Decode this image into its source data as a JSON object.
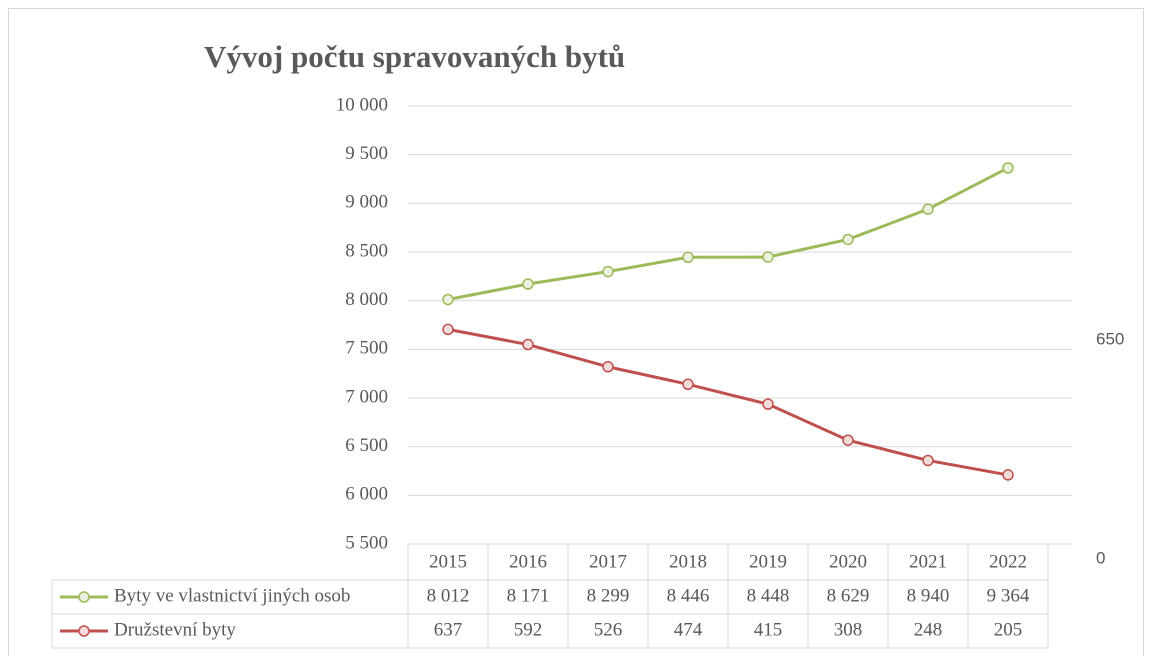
{
  "chart_data": {
    "type": "line",
    "title": "Vývoj počtu spravovaných bytů",
    "categories": [
      "2015",
      "2016",
      "2017",
      "2018",
      "2019",
      "2020",
      "2021",
      "2022"
    ],
    "series": [
      {
        "name": "Byty ve vlastnictví jiných osob",
        "color": "#9bbb59",
        "marker_fill": "#ebf1de",
        "values": [
          8012,
          8171,
          8299,
          8446,
          8448,
          8629,
          8940,
          9364
        ],
        "value_labels": [
          "8 012",
          "8 171",
          "8 299",
          "8 446",
          "8 448",
          "8 629",
          "8 940",
          "9 364"
        ]
      },
      {
        "name": "Družstevní byty",
        "color": "#c0504d",
        "marker_fill": "#f2dcdb",
        "axis": "y2",
        "values": [
          637,
          592,
          526,
          474,
          415,
          308,
          248,
          205
        ]
      }
    ],
    "ylim": [
      5500,
      10000
    ],
    "yticks": [
      {
        "value": 5500,
        "label": "5 500"
      },
      {
        "value": 6000,
        "label": "6 000"
      },
      {
        "value": 6500,
        "label": "6 500"
      },
      {
        "value": 7000,
        "label": "7 000"
      },
      {
        "value": 7500,
        "label": "7 500"
      },
      {
        "value": 8000,
        "label": "8 000"
      },
      {
        "value": 8500,
        "label": "8 500"
      },
      {
        "value": 9000,
        "label": "9 000"
      },
      {
        "value": 9500,
        "label": "9 500"
      },
      {
        "value": 10000,
        "label": "10 000"
      }
    ],
    "y2lim": [
      0,
      1300
    ],
    "y2ticks": [
      0,
      650
    ],
    "grid": true
  }
}
